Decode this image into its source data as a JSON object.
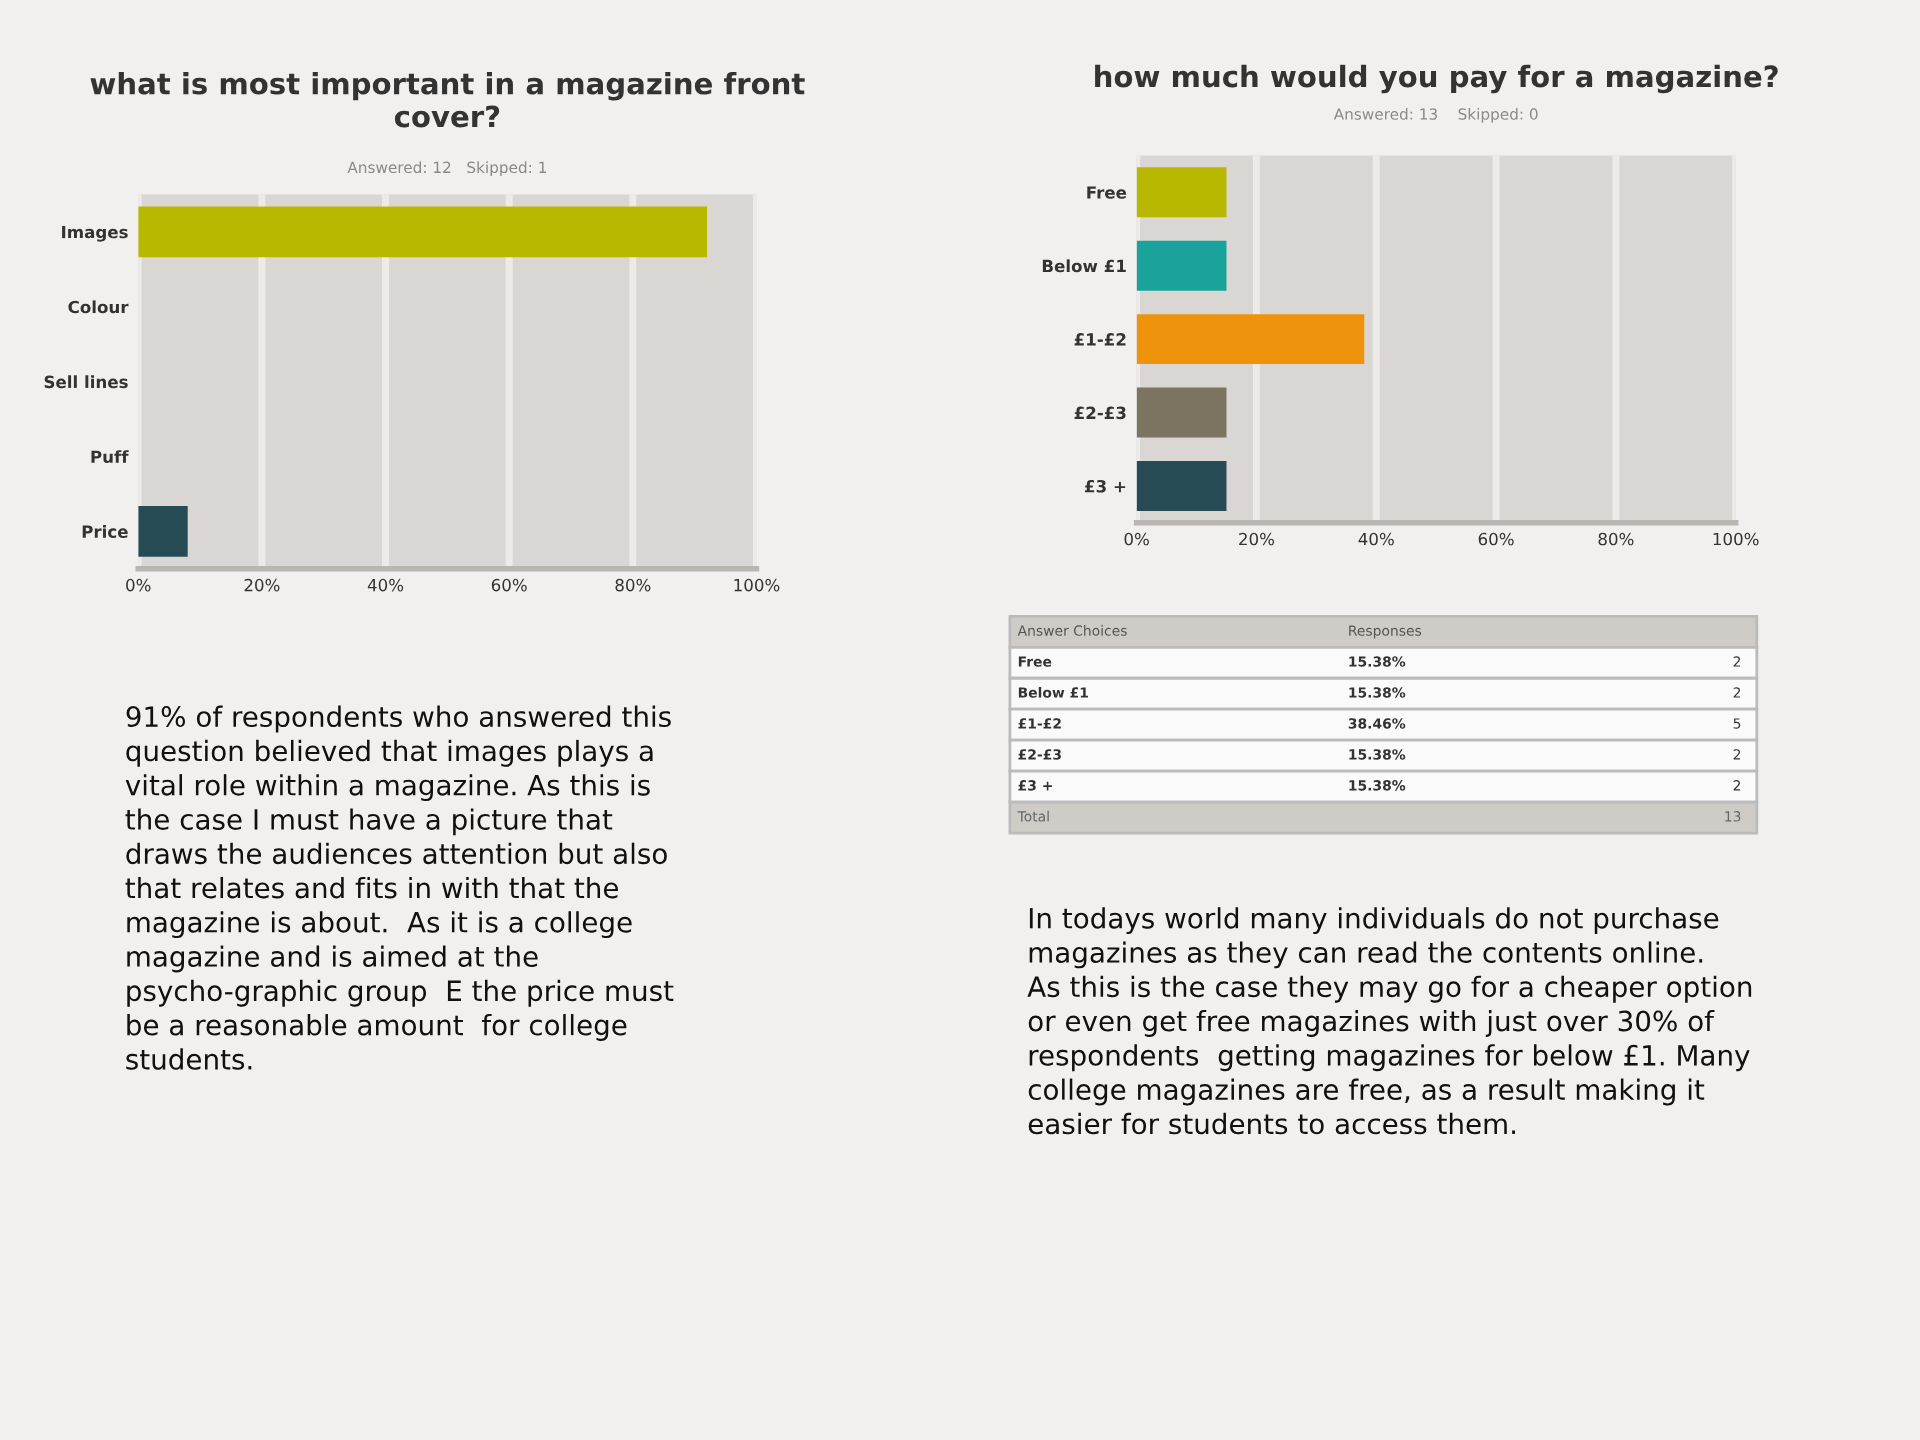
{
  "chart_data": [
    {
      "type": "bar",
      "orientation": "horizontal",
      "title": "what is most important in a magazine front cover?",
      "subtitle": "Answered: 12   Skipped: 1",
      "categories": [
        "Images",
        "Colour",
        "Sell lines",
        "Puff",
        "Price"
      ],
      "values": [
        92,
        0,
        0,
        0,
        8
      ],
      "colors": [
        "#b8b800",
        "#1aa39b",
        "#ef920c",
        "#7a7461",
        "#274b55"
      ],
      "xlim": [
        0,
        100
      ],
      "xticks": [
        {
          "value": 0,
          "label": "0%"
        },
        {
          "value": 20,
          "label": "20%"
        },
        {
          "value": 40,
          "label": "40%"
        },
        {
          "value": 60,
          "label": "60%"
        },
        {
          "value": 80,
          "label": "80%"
        },
        {
          "value": 100,
          "label": "100%"
        }
      ],
      "grid": "x",
      "annotations": [
        "91% of respondents who answered this question believed that images plays a vital role within a magazine. As this is the case I must have a picture that draws the audiences attention but also that relates and fits in with that the magazine is about.  As it is a college magazine and is aimed at the psycho-graphic group  E the price must be a reasonable amount  for college students."
      ]
    },
    {
      "type": "bar",
      "orientation": "horizontal",
      "title": "how much would you pay for a magazine?",
      "subtitle": "Answered: 13    Skipped: 0",
      "categories": [
        "Free",
        "Below £1",
        "£1-£2",
        "£2-£3",
        "£3 +"
      ],
      "values": [
        15,
        15,
        38,
        15,
        15
      ],
      "colors": [
        "#b8b800",
        "#1aa39b",
        "#ef920c",
        "#7a7461",
        "#274b55"
      ],
      "xlim": [
        0,
        100
      ],
      "xticks": [
        {
          "value": 0,
          "label": "0%"
        },
        {
          "value": 20,
          "label": "20%"
        },
        {
          "value": 40,
          "label": "40%"
        },
        {
          "value": 60,
          "label": "60%"
        },
        {
          "value": 80,
          "label": "80%"
        },
        {
          "value": 100,
          "label": "100%"
        }
      ],
      "grid": "x",
      "annotations": [
        "Answer Choices",
        "Responses",
        "15.38%",
        "2",
        "15.38%",
        "2",
        "38.46%",
        "5",
        "15.38%",
        "2",
        "15.38%",
        "2",
        "Total",
        "13",
        "In todays world many individuals do not purchase magazines as they can read the contents online.  As this is the case they may go for a cheaper option or even get free magazines with just over 30% of respondents  getting magazines for below £1. Many college magazines are free, as a result making it easier for students to access them."
      ]
    }
  ]
}
